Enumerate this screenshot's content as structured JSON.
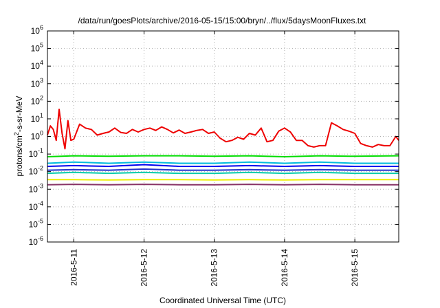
{
  "chart_data": {
    "type": "line",
    "title": "/data/run/goesPlots/archive/2016-05-15/15:00/bryn/../flux/5daysMoonFluxes.txt",
    "xlabel": "Coordinated Universal Time (UTC)",
    "ylabel": {
      "prefix": "protons/cm",
      "superscript": "2",
      "suffix": "-s-sr-MeV"
    },
    "yscale": "log",
    "ylim": [
      1e-06,
      1000000.0
    ],
    "y_ticks": [
      {
        "base": "10",
        "exp": "-6",
        "value": 1e-06
      },
      {
        "base": "10",
        "exp": "-5",
        "value": 1e-05
      },
      {
        "base": "10",
        "exp": "-4",
        "value": 0.0001
      },
      {
        "base": "10",
        "exp": "-3",
        "value": 0.001
      },
      {
        "base": "10",
        "exp": "-2",
        "value": 0.01
      },
      {
        "base": "10",
        "exp": "-1",
        "value": 0.1
      },
      {
        "base": "10",
        "exp": "0",
        "value": 1
      },
      {
        "base": "10",
        "exp": "1",
        "value": 10
      },
      {
        "base": "10",
        "exp": "2",
        "value": 100
      },
      {
        "base": "10",
        "exp": "3",
        "value": 1000
      },
      {
        "base": "10",
        "exp": "4",
        "value": 10000
      },
      {
        "base": "10",
        "exp": "5",
        "value": 100000
      },
      {
        "base": "10",
        "exp": "6",
        "value": 1000000
      }
    ],
    "xlim": [
      "2016-05-10T15:00",
      "2016-05-15T15:00"
    ],
    "x_ticks": [
      {
        "label": "2016-5-11",
        "value": "2016-05-11T00:00"
      },
      {
        "label": "2016-5-12",
        "value": "2016-05-12T00:00"
      },
      {
        "label": "2016-5-13",
        "value": "2016-05-13T00:00"
      },
      {
        "label": "2016-5-14",
        "value": "2016-05-14T00:00"
      },
      {
        "label": "2016-5-15",
        "value": "2016-05-15T00:00"
      }
    ],
    "grid": true,
    "legend": "none",
    "series": [
      {
        "color": "#ee0000",
        "x": [
          "2016-05-10T15:00",
          "2016-05-10T16:00",
          "2016-05-10T17:00",
          "2016-05-10T18:00",
          "2016-05-10T19:00",
          "2016-05-10T20:00",
          "2016-05-10T21:00",
          "2016-05-10T22:00",
          "2016-05-10T23:00",
          "2016-05-11T00:00",
          "2016-05-11T02:00",
          "2016-05-11T04:00",
          "2016-05-11T06:00",
          "2016-05-11T08:00",
          "2016-05-11T10:00",
          "2016-05-11T12:00",
          "2016-05-11T14:00",
          "2016-05-11T16:00",
          "2016-05-11T18:00",
          "2016-05-11T20:00",
          "2016-05-11T22:00",
          "2016-05-12T00:00",
          "2016-05-12T02:00",
          "2016-05-12T04:00",
          "2016-05-12T06:00",
          "2016-05-12T08:00",
          "2016-05-12T10:00",
          "2016-05-12T12:00",
          "2016-05-12T14:00",
          "2016-05-12T16:00",
          "2016-05-12T18:00",
          "2016-05-12T20:00",
          "2016-05-12T22:00",
          "2016-05-13T00:00",
          "2016-05-13T02:00",
          "2016-05-13T04:00",
          "2016-05-13T06:00",
          "2016-05-13T08:00",
          "2016-05-13T10:00",
          "2016-05-13T12:00",
          "2016-05-13T14:00",
          "2016-05-13T16:00",
          "2016-05-13T18:00",
          "2016-05-13T20:00",
          "2016-05-13T22:00",
          "2016-05-14T00:00",
          "2016-05-14T02:00",
          "2016-05-14T04:00",
          "2016-05-14T06:00",
          "2016-05-14T08:00",
          "2016-05-14T10:00",
          "2016-05-14T12:00",
          "2016-05-14T14:00",
          "2016-05-14T16:00",
          "2016-05-14T18:00",
          "2016-05-14T20:00",
          "2016-05-14T22:00",
          "2016-05-15T00:00",
          "2016-05-15T02:00",
          "2016-05-15T04:00",
          "2016-05-15T06:00",
          "2016-05-15T08:00",
          "2016-05-15T10:00",
          "2016-05-15T12:00",
          "2016-05-15T14:00",
          "2016-05-15T15:00"
        ],
        "values": [
          1.2,
          4,
          2.5,
          0.6,
          35,
          1.5,
          0.2,
          8,
          0.6,
          0.7,
          5,
          3,
          2.5,
          1.2,
          1.5,
          1.8,
          3,
          1.7,
          1.5,
          2.5,
          1.8,
          2.5,
          3,
          2.2,
          3.5,
          2.5,
          1.6,
          2.3,
          1.5,
          1.8,
          2.2,
          2.5,
          1.5,
          1.8,
          0.8,
          0.5,
          0.6,
          0.9,
          0.7,
          1.5,
          1.2,
          3,
          0.5,
          0.6,
          2,
          3,
          1.8,
          0.6,
          0.6,
          0.3,
          0.25,
          0.3,
          0.3,
          6,
          4,
          2.5,
          2,
          1.5,
          0.4,
          0.3,
          0.25,
          0.35,
          0.3,
          0.3,
          1,
          0.6
        ]
      },
      {
        "color": "#00dd00",
        "x": [
          "2016-05-10T15:00",
          "2016-05-11T00:00",
          "2016-05-11T12:00",
          "2016-05-12T00:00",
          "2016-05-12T12:00",
          "2016-05-13T00:00",
          "2016-05-13T12:00",
          "2016-05-14T00:00",
          "2016-05-14T12:00",
          "2016-05-15T00:00",
          "2016-05-15T15:00"
        ],
        "values": [
          0.07,
          0.08,
          0.075,
          0.08,
          0.08,
          0.075,
          0.08,
          0.07,
          0.08,
          0.075,
          0.08
        ]
      },
      {
        "color": "#00bbdd",
        "x": [
          "2016-05-10T15:00",
          "2016-05-11T00:00",
          "2016-05-11T12:00",
          "2016-05-12T00:00",
          "2016-05-12T12:00",
          "2016-05-13T00:00",
          "2016-05-13T12:00",
          "2016-05-14T00:00",
          "2016-05-14T12:00",
          "2016-05-15T00:00",
          "2016-05-15T15:00"
        ],
        "values": [
          0.03,
          0.035,
          0.03,
          0.035,
          0.03,
          0.03,
          0.035,
          0.03,
          0.035,
          0.03,
          0.03
        ]
      },
      {
        "color": "#0000ee",
        "x": [
          "2016-05-10T15:00",
          "2016-05-11T00:00",
          "2016-05-11T12:00",
          "2016-05-12T00:00",
          "2016-05-12T12:00",
          "2016-05-13T00:00",
          "2016-05-13T12:00",
          "2016-05-14T00:00",
          "2016-05-14T12:00",
          "2016-05-15T00:00",
          "2016-05-15T15:00"
        ],
        "values": [
          0.02,
          0.022,
          0.02,
          0.025,
          0.02,
          0.02,
          0.022,
          0.02,
          0.022,
          0.02,
          0.02
        ]
      },
      {
        "color": "#2233cc",
        "x": [
          "2016-05-10T15:00",
          "2016-05-11T00:00",
          "2016-05-11T12:00",
          "2016-05-12T00:00",
          "2016-05-12T12:00",
          "2016-05-13T00:00",
          "2016-05-13T12:00",
          "2016-05-14T00:00",
          "2016-05-14T12:00",
          "2016-05-15T00:00",
          "2016-05-15T15:00"
        ],
        "values": [
          0.012,
          0.013,
          0.012,
          0.014,
          0.012,
          0.012,
          0.013,
          0.012,
          0.013,
          0.012,
          0.012
        ]
      },
      {
        "color": "#00ccaa",
        "x": [
          "2016-05-10T15:00",
          "2016-05-11T00:00",
          "2016-05-11T12:00",
          "2016-05-12T00:00",
          "2016-05-12T12:00",
          "2016-05-13T00:00",
          "2016-05-13T12:00",
          "2016-05-14T00:00",
          "2016-05-14T12:00",
          "2016-05-15T00:00",
          "2016-05-15T15:00"
        ],
        "values": [
          0.008,
          0.009,
          0.008,
          0.009,
          0.008,
          0.008,
          0.009,
          0.008,
          0.009,
          0.008,
          0.008
        ]
      },
      {
        "color": "#eeee00",
        "x": [
          "2016-05-10T15:00",
          "2016-05-11T00:00",
          "2016-05-11T12:00",
          "2016-05-12T00:00",
          "2016-05-12T12:00",
          "2016-05-13T00:00",
          "2016-05-13T12:00",
          "2016-05-14T00:00",
          "2016-05-14T12:00",
          "2016-05-15T00:00",
          "2016-05-15T15:00"
        ],
        "values": [
          0.0035,
          0.0035,
          0.0034,
          0.0035,
          0.0035,
          0.0034,
          0.0035,
          0.0034,
          0.0035,
          0.0035,
          0.0035
        ]
      },
      {
        "color": "#883366",
        "x": [
          "2016-05-10T15:00",
          "2016-05-11T00:00",
          "2016-05-11T12:00",
          "2016-05-12T00:00",
          "2016-05-12T12:00",
          "2016-05-13T00:00",
          "2016-05-13T12:00",
          "2016-05-14T00:00",
          "2016-05-14T12:00",
          "2016-05-15T00:00",
          "2016-05-15T15:00"
        ],
        "values": [
          0.0018,
          0.0019,
          0.0018,
          0.0019,
          0.0018,
          0.0018,
          0.0019,
          0.0018,
          0.0019,
          0.0018,
          0.0018
        ]
      }
    ]
  }
}
